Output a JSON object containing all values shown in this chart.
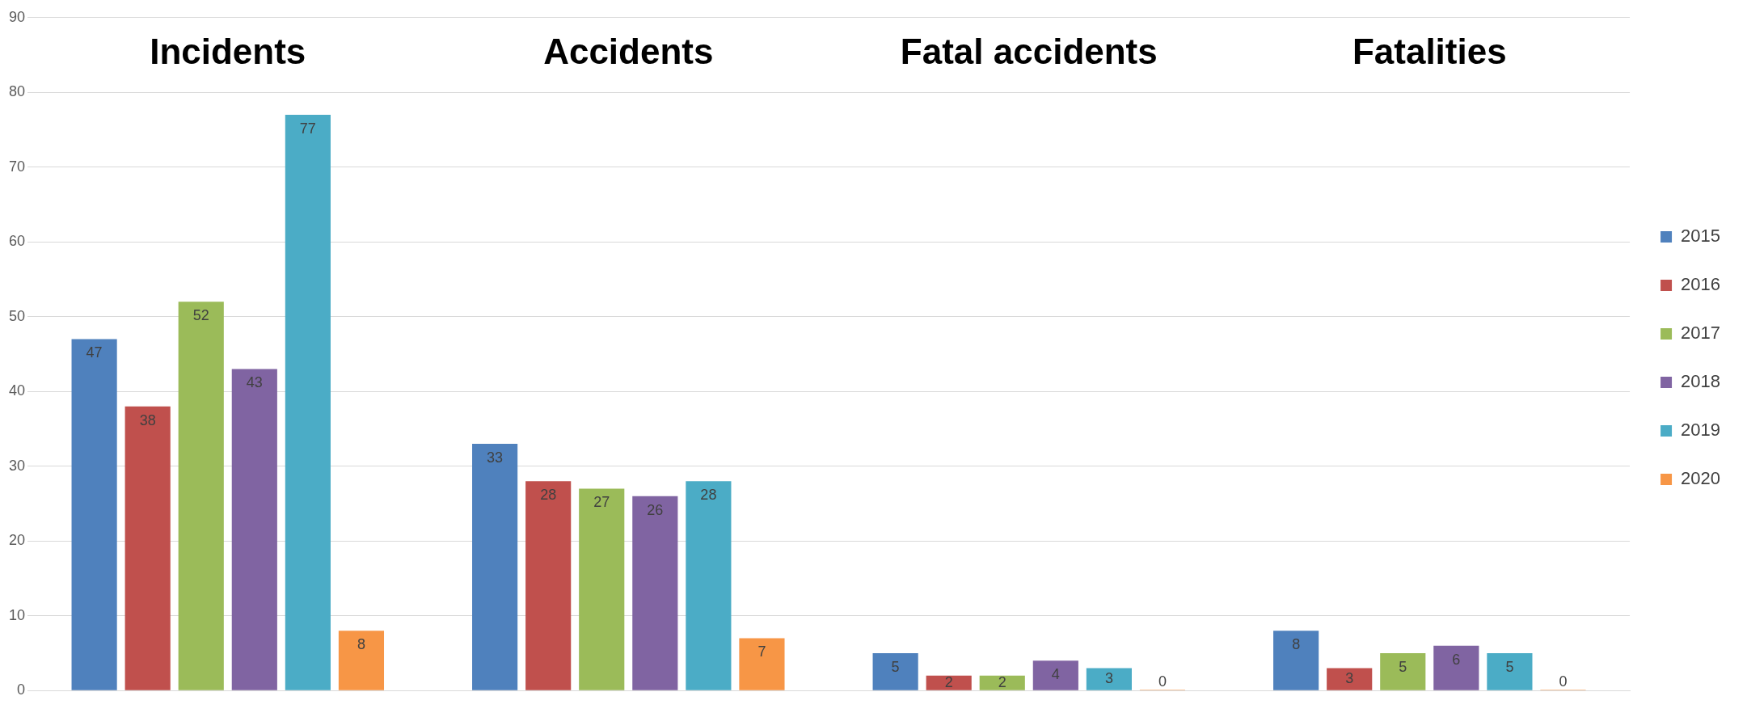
{
  "chart_data": {
    "type": "bar",
    "categories": [
      "Incidents",
      "Accidents",
      "Fatal accidents",
      "Fatalities"
    ],
    "series": [
      {
        "name": "2015",
        "color": "#4f81bd",
        "values": [
          47,
          33,
          5,
          8
        ]
      },
      {
        "name": "2016",
        "color": "#c0504d",
        "values": [
          38,
          28,
          2,
          3
        ]
      },
      {
        "name": "2017",
        "color": "#9bbb59",
        "values": [
          52,
          27,
          2,
          5
        ]
      },
      {
        "name": "2018",
        "color": "#8064a2",
        "values": [
          43,
          26,
          4,
          6
        ]
      },
      {
        "name": "2019",
        "color": "#4bacc6",
        "values": [
          77,
          28,
          3,
          5
        ]
      },
      {
        "name": "2020",
        "color": "#f79646",
        "values": [
          8,
          7,
          0,
          0
        ]
      }
    ],
    "ylim": [
      0,
      90
    ],
    "yticks": [
      0,
      10,
      20,
      30,
      40,
      50,
      60,
      70,
      80,
      90
    ],
    "grid": "y",
    "legend": "right",
    "data_labels": true
  }
}
